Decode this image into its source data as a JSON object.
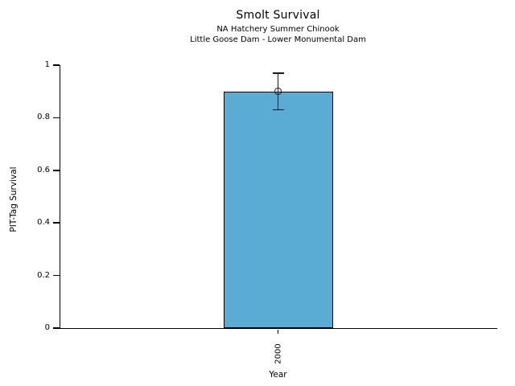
{
  "chart_data": {
    "type": "bar",
    "title": "Smolt Survival",
    "subtitle1": "NA Hatchery Summer Chinook",
    "subtitle2": "Little Goose Dam - Lower Monumental Dam",
    "xlabel": "Year",
    "ylabel": "PIT-Tag Survival",
    "categories": [
      "2000"
    ],
    "values": [
      0.9
    ],
    "error_lower": [
      0.83
    ],
    "error_upper": [
      0.97
    ],
    "ylim": [
      0,
      1
    ],
    "ytick_labels": [
      "0",
      "0.2",
      "0.4",
      "0.6",
      "0.8",
      "1"
    ],
    "ytick_values": [
      0,
      0.2,
      0.4,
      0.6,
      0.8,
      1
    ],
    "grid": false,
    "legend_position": "none",
    "marker": "open-circle",
    "colors": {
      "bar_fill": "#5AACD5",
      "bar_edge": "#000000",
      "axis": "#000000",
      "text": "#000000",
      "background": "#FFFFFF"
    }
  }
}
